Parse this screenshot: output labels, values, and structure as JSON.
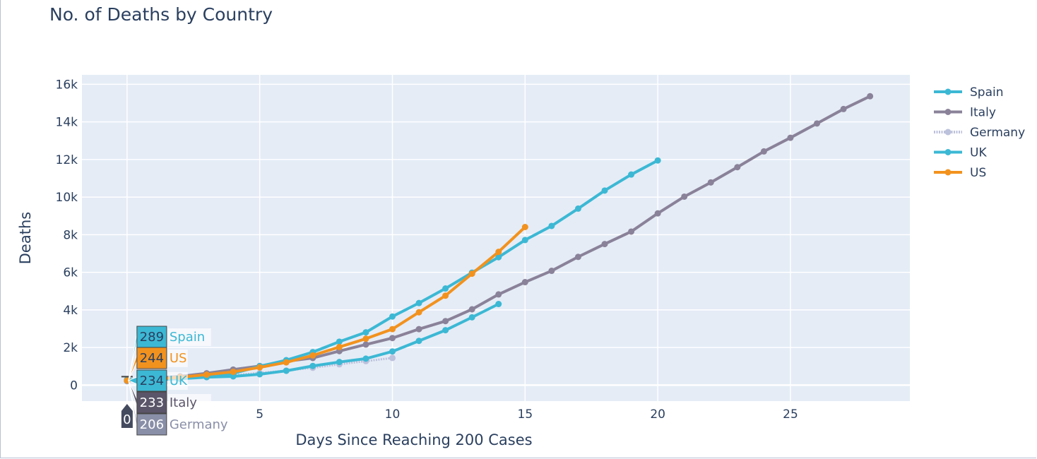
{
  "chart_data": {
    "type": "line",
    "title": "No. of Deaths by Country",
    "xlabel": "Days Since Reaching 200 Cases",
    "ylabel": "Deaths",
    "xlim": [
      -1.7,
      29.5
    ],
    "ylim": [
      -850,
      16500
    ],
    "x_ticks": [
      5,
      10,
      15,
      20,
      25
    ],
    "y_ticks": [
      0,
      2000,
      4000,
      6000,
      8000,
      10000,
      12000,
      14000,
      16000
    ],
    "y_tick_labels": [
      "0",
      "2k",
      "4k",
      "6k",
      "8k",
      "10k",
      "12k",
      "14k",
      "16k"
    ],
    "grid": true,
    "legend_position": "top-right",
    "series": [
      {
        "name": "Spain",
        "color": "#3cb8d4",
        "x": [
          0,
          1,
          2,
          3,
          4,
          5,
          6,
          7,
          8,
          9,
          10,
          11,
          12,
          13,
          14,
          15,
          16,
          17,
          18,
          19,
          20
        ],
        "y": [
          289,
          309,
          391,
          495,
          623,
          1002,
          1326,
          1756,
          2311,
          2808,
          3647,
          4365,
          5138,
          5982,
          6803,
          7716,
          8464,
          9387,
          10348,
          11198,
          11947
        ]
      },
      {
        "name": "Italy",
        "color": "#8a8299",
        "x": [
          0,
          1,
          2,
          3,
          4,
          5,
          6,
          7,
          8,
          9,
          10,
          11,
          12,
          13,
          14,
          15,
          16,
          17,
          18,
          19,
          20,
          21,
          22,
          23,
          24,
          25,
          26,
          27,
          28
        ],
        "y": [
          233,
          366,
          463,
          631,
          827,
          1016,
          1266,
          1441,
          1809,
          2158,
          2503,
          2978,
          3405,
          4032,
          4825,
          5476,
          6077,
          6820,
          7503,
          8165,
          9134,
          10023,
          10779,
          11591,
          12428,
          13155,
          13915,
          14681,
          15362
        ]
      },
      {
        "name": "Germany",
        "color": "#bcc1dc",
        "x": [
          0,
          1,
          2,
          3,
          4,
          5,
          6,
          7,
          8,
          9,
          10
        ],
        "y": [
          206,
          267,
          342,
          433,
          533,
          645,
          775,
          920,
          1107,
          1275,
          1444
        ]
      },
      {
        "name": "UK",
        "color": "#3cb8d4",
        "x": [
          0,
          1,
          2,
          3,
          4,
          5,
          6,
          7,
          8,
          9,
          10,
          11,
          12,
          13,
          14
        ],
        "y": [
          234,
          282,
          336,
          423,
          466,
          578,
          761,
          1019,
          1228,
          1408,
          1789,
          2352,
          2921,
          3605,
          4313
        ]
      },
      {
        "name": "US",
        "color": "#f2921e",
        "x": [
          0,
          1,
          2,
          3,
          4,
          5,
          6,
          7,
          8,
          9,
          10,
          11,
          12,
          13,
          14,
          15
        ],
        "y": [
          244,
          307,
          419,
          557,
          706,
          942,
          1209,
          1581,
          2026,
          2467,
          2978,
          3873,
          4757,
          5926,
          7087,
          8407
        ]
      }
    ],
    "hover_labels": [
      {
        "value": "289",
        "name": "Spain",
        "color": "#3cb8d4"
      },
      {
        "value": "244",
        "name": "US",
        "color": "#f2921e"
      },
      {
        "value": "234",
        "name": "UK",
        "color": "#3cb8d4"
      },
      {
        "value": "233",
        "name": "Italy",
        "color": "#5b5569"
      },
      {
        "value": "206",
        "name": "Germany",
        "color": "#8a8fa8"
      }
    ],
    "hover_x_label": "0"
  }
}
